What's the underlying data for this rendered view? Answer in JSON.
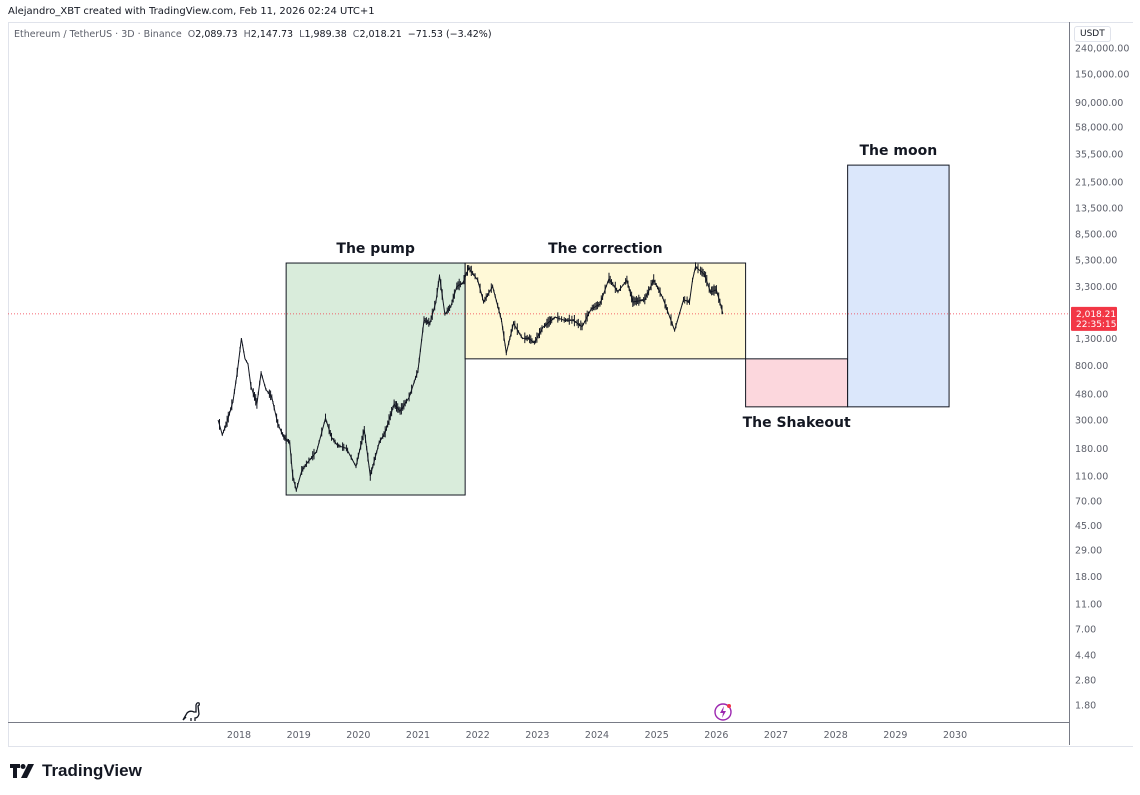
{
  "header": {
    "credit": "Alejandro_XBT created with TradingView.com, Feb 11, 2026 02:24 UTC+1",
    "symbol": "Ethereum / TetherUS · 3D · Binance",
    "open_label": "O",
    "open": "2,089.73",
    "high_label": "H",
    "high": "2,147.73",
    "low_label": "L",
    "low": "1,989.38",
    "close_label": "C",
    "close": "2,018.21",
    "change": "−71.53 (−3.42%)"
  },
  "currency": "USDT",
  "last_price": {
    "price": "2,018.21",
    "countdown": "22:35:15",
    "value": 2018.21,
    "color": "#f23645"
  },
  "brand": {
    "name": "TradingView"
  },
  "chart_data": {
    "type": "line",
    "scale": "log",
    "ylim": [
      1.5,
      260000
    ],
    "xlim": [
      2014.2,
      2031.9
    ],
    "y_ticks": [
      {
        "v": 240000,
        "label": "240,000.00"
      },
      {
        "v": 150000,
        "label": "150,000.00"
      },
      {
        "v": 90000,
        "label": "90,000.00"
      },
      {
        "v": 58000,
        "label": "58,000.00"
      },
      {
        "v": 35500,
        "label": "35,500.00"
      },
      {
        "v": 21500,
        "label": "21,500.00"
      },
      {
        "v": 13500,
        "label": "13,500.00"
      },
      {
        "v": 8500,
        "label": "8,500.00"
      },
      {
        "v": 5300,
        "label": "5,300.00"
      },
      {
        "v": 3300,
        "label": "3,300.00"
      },
      {
        "v": 1300,
        "label": "1,300.00"
      },
      {
        "v": 800,
        "label": "800.00"
      },
      {
        "v": 480,
        "label": "480.00"
      },
      {
        "v": 300,
        "label": "300.00"
      },
      {
        "v": 180,
        "label": "180.00"
      },
      {
        "v": 110,
        "label": "110.00"
      },
      {
        "v": 70,
        "label": "70.00"
      },
      {
        "v": 45,
        "label": "45.00"
      },
      {
        "v": 29,
        "label": "29.00"
      },
      {
        "v": 18,
        "label": "18.00"
      },
      {
        "v": 11,
        "label": "11.00"
      },
      {
        "v": 7,
        "label": "7.00"
      },
      {
        "v": 4.4,
        "label": "4.40"
      },
      {
        "v": 2.8,
        "label": "2.80"
      },
      {
        "v": 1.8,
        "label": "1.80"
      }
    ],
    "x_ticks": [
      "2018",
      "2019",
      "2020",
      "2021",
      "2022",
      "2023",
      "2024",
      "2025",
      "2026",
      "2027",
      "2028",
      "2029",
      "2030"
    ],
    "price_series": [
      [
        2017.65,
        300
      ],
      [
        2017.72,
        230
      ],
      [
        2017.8,
        290
      ],
      [
        2017.9,
        420
      ],
      [
        2017.97,
        700
      ],
      [
        2018.04,
        1300
      ],
      [
        2018.1,
        900
      ],
      [
        2018.15,
        820
      ],
      [
        2018.2,
        550
      ],
      [
        2018.3,
        400
      ],
      [
        2018.37,
        700
      ],
      [
        2018.45,
        520
      ],
      [
        2018.55,
        450
      ],
      [
        2018.65,
        280
      ],
      [
        2018.75,
        220
      ],
      [
        2018.85,
        200
      ],
      [
        2018.9,
        110
      ],
      [
        2018.96,
        85
      ],
      [
        2019.05,
        120
      ],
      [
        2019.15,
        140
      ],
      [
        2019.3,
        170
      ],
      [
        2019.45,
        310
      ],
      [
        2019.55,
        220
      ],
      [
        2019.65,
        190
      ],
      [
        2019.8,
        180
      ],
      [
        2019.96,
        130
      ],
      [
        2020.1,
        250
      ],
      [
        2020.2,
        110
      ],
      [
        2020.35,
        200
      ],
      [
        2020.45,
        240
      ],
      [
        2020.6,
        400
      ],
      [
        2020.7,
        350
      ],
      [
        2020.85,
        450
      ],
      [
        2021.0,
        730
      ],
      [
        2021.1,
        1800
      ],
      [
        2021.2,
        1700
      ],
      [
        2021.3,
        2500
      ],
      [
        2021.36,
        4000
      ],
      [
        2021.45,
        2000
      ],
      [
        2021.55,
        2300
      ],
      [
        2021.65,
        3300
      ],
      [
        2021.75,
        3500
      ],
      [
        2021.85,
        4600
      ],
      [
        2022.0,
        3700
      ],
      [
        2022.1,
        2500
      ],
      [
        2022.25,
        3300
      ],
      [
        2022.4,
        1800
      ],
      [
        2022.48,
        1000
      ],
      [
        2022.6,
        1700
      ],
      [
        2022.75,
        1300
      ],
      [
        2022.85,
        1300
      ],
      [
        2022.95,
        1200
      ],
      [
        2023.1,
        1600
      ],
      [
        2023.3,
        1900
      ],
      [
        2023.45,
        1800
      ],
      [
        2023.6,
        1800
      ],
      [
        2023.75,
        1600
      ],
      [
        2023.9,
        2200
      ],
      [
        2024.05,
        2400
      ],
      [
        2024.2,
        3800
      ],
      [
        2024.35,
        3000
      ],
      [
        2024.5,
        3700
      ],
      [
        2024.6,
        2500
      ],
      [
        2024.8,
        2600
      ],
      [
        2024.95,
        3700
      ],
      [
        2025.1,
        2700
      ],
      [
        2025.3,
        1500
      ],
      [
        2025.45,
        2600
      ],
      [
        2025.55,
        2500
      ],
      [
        2025.6,
        3700
      ],
      [
        2025.65,
        4700
      ],
      [
        2025.8,
        4100
      ],
      [
        2025.9,
        3000
      ],
      [
        2026.0,
        3100
      ],
      [
        2026.08,
        2300
      ],
      [
        2026.11,
        2018.21
      ]
    ],
    "annotations": [
      {
        "label": "The pump",
        "x0": 2018.79,
        "x1": 2021.79,
        "y0": 78,
        "y1": 5030,
        "fill": "#d9ecdb",
        "label_pos": "top"
      },
      {
        "label": "The correction",
        "x0": 2021.79,
        "x1": 2026.49,
        "y0": 900,
        "y1": 5030,
        "fill": "#fff9d7",
        "label_pos": "top"
      },
      {
        "label": "The Shakeout",
        "x0": 2026.49,
        "x1": 2028.2,
        "y0": 380,
        "y1": 900,
        "fill": "#fcd7dd",
        "label_pos": "bottom"
      },
      {
        "label": "The moon",
        "x0": 2028.2,
        "x1": 2029.9,
        "y0": 380,
        "y1": 29200,
        "fill": "#dbe7fb",
        "label_pos": "top"
      }
    ]
  }
}
